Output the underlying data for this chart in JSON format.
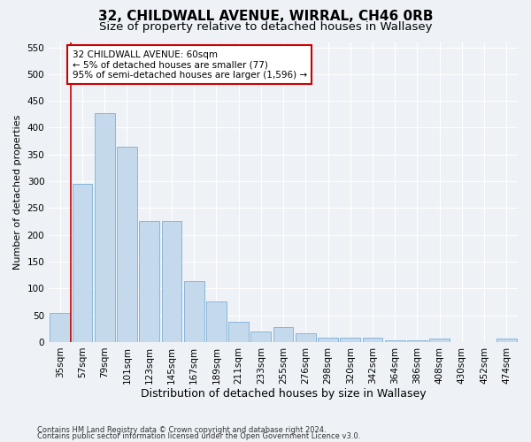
{
  "title1": "32, CHILDWALL AVENUE, WIRRAL, CH46 0RB",
  "title2": "Size of property relative to detached houses in Wallasey",
  "xlabel": "Distribution of detached houses by size in Wallasey",
  "ylabel": "Number of detached properties",
  "categories": [
    "35sqm",
    "57sqm",
    "79sqm",
    "101sqm",
    "123sqm",
    "145sqm",
    "167sqm",
    "189sqm",
    "211sqm",
    "233sqm",
    "255sqm",
    "276sqm",
    "298sqm",
    "320sqm",
    "342sqm",
    "364sqm",
    "386sqm",
    "408sqm",
    "430sqm",
    "452sqm",
    "474sqm"
  ],
  "values": [
    55,
    295,
    428,
    365,
    226,
    226,
    113,
    75,
    38,
    20,
    28,
    17,
    9,
    9,
    9,
    4,
    4,
    7,
    0,
    0,
    6
  ],
  "bar_color": "#c5d9ed",
  "bar_edge_color": "#7bafd4",
  "annotation_line1": "32 CHILDWALL AVENUE: 60sqm",
  "annotation_line2": "← 5% of detached houses are smaller (77)",
  "annotation_line3": "95% of semi-detached houses are larger (1,596) →",
  "annotation_box_color": "#ffffff",
  "annotation_border_color": "#cc0000",
  "vline_color": "#cc0000",
  "ylim": [
    0,
    560
  ],
  "yticks": [
    0,
    50,
    100,
    150,
    200,
    250,
    300,
    350,
    400,
    450,
    500,
    550
  ],
  "footer1": "Contains HM Land Registry data © Crown copyright and database right 2024.",
  "footer2": "Contains public sector information licensed under the Open Government Licence v3.0.",
  "bg_color": "#eef2f7",
  "plot_bg_color": "#eef2f7",
  "grid_color": "#ffffff",
  "title1_fontsize": 11,
  "title2_fontsize": 9.5,
  "xlabel_fontsize": 9,
  "ylabel_fontsize": 8,
  "tick_fontsize": 7.5
}
